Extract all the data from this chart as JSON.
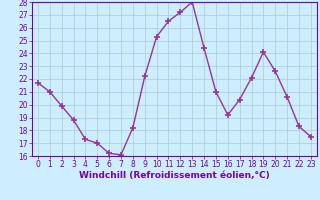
{
  "x": [
    0,
    1,
    2,
    3,
    4,
    5,
    6,
    7,
    8,
    9,
    10,
    11,
    12,
    13,
    14,
    15,
    16,
    17,
    18,
    19,
    20,
    21,
    22,
    23
  ],
  "y": [
    21.7,
    21.0,
    19.9,
    18.8,
    17.3,
    17.0,
    16.2,
    16.1,
    18.2,
    22.2,
    25.3,
    26.5,
    27.2,
    28.0,
    24.4,
    21.0,
    19.2,
    20.4,
    22.1,
    24.1,
    22.6,
    20.6,
    18.3,
    17.5
  ],
  "line_color": "#993399",
  "marker": "+",
  "marker_size": 4,
  "marker_linewidth": 1.2,
  "bg_color": "#cceeff",
  "grid_color": "#aacccc",
  "xlabel": "Windchill (Refroidissement éolien,°C)",
  "ylim": [
    16,
    28
  ],
  "xlim_min": -0.5,
  "xlim_max": 23.5,
  "yticks": [
    16,
    17,
    18,
    19,
    20,
    21,
    22,
    23,
    24,
    25,
    26,
    27,
    28
  ],
  "xticks": [
    0,
    1,
    2,
    3,
    4,
    5,
    6,
    7,
    8,
    9,
    10,
    11,
    12,
    13,
    14,
    15,
    16,
    17,
    18,
    19,
    20,
    21,
    22,
    23
  ],
  "tick_label_fontsize": 5.5,
  "xlabel_fontsize": 6.5,
  "axis_label_color": "#7700aa",
  "tick_color": "#7700aa",
  "spine_color": "#7700aa",
  "linewidth": 1.0
}
